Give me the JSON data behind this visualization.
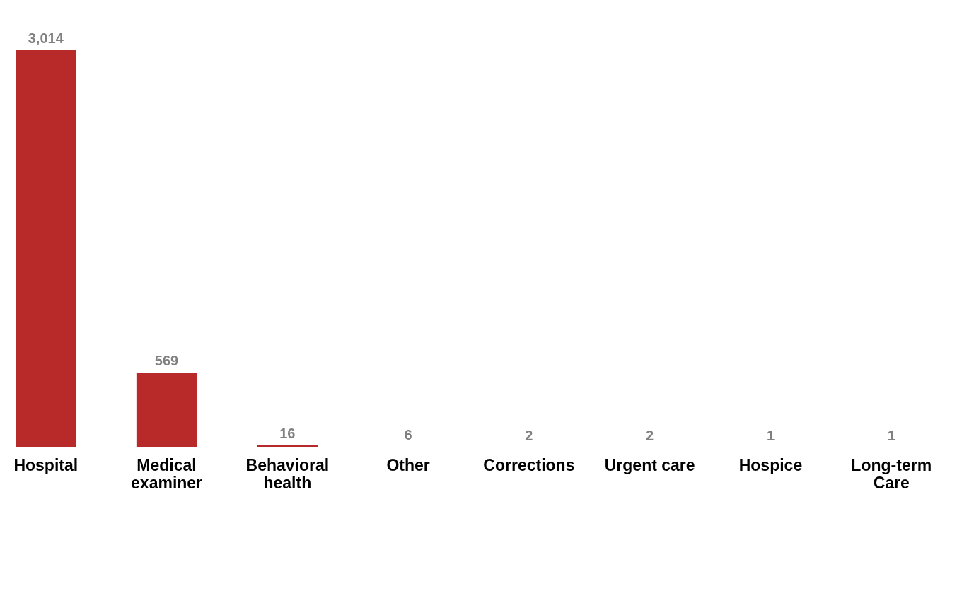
{
  "chart_data": {
    "type": "bar",
    "categories": [
      "Hospital",
      "Medical examiner",
      "Behavioral health",
      "Other",
      "Corrections",
      "Urgent care",
      "Hospice",
      "Long-term Care"
    ],
    "values": [
      3014,
      569,
      16,
      6,
      2,
      2,
      1,
      1
    ],
    "value_labels": [
      "3,014",
      "569",
      "16",
      "6",
      "2",
      "2",
      "1",
      "1"
    ],
    "color": "#b8292a",
    "grid": false
  }
}
